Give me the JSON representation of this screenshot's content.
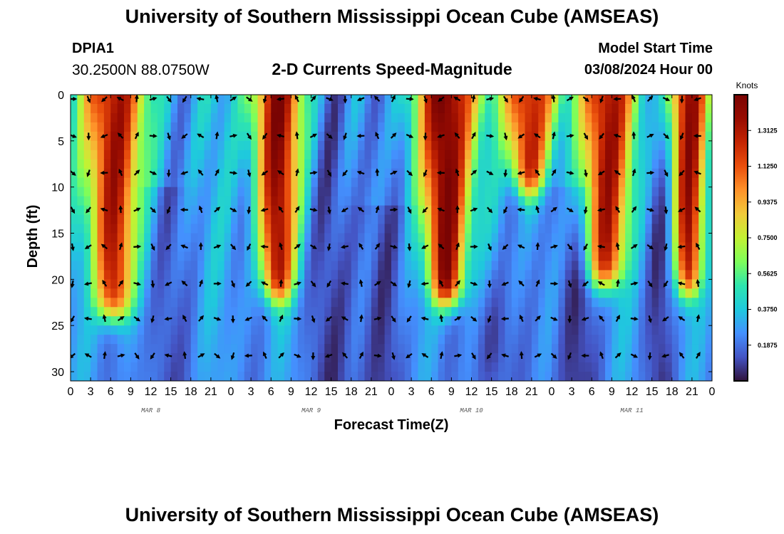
{
  "title": "University of Southern Mississippi Ocean Cube (AMSEAS)",
  "station": {
    "id": "DPIA1",
    "coords": "30.2500N  88.0750W"
  },
  "plot_title": "2-D Currents Speed-Magnitude",
  "model_start": {
    "label": "Model Start Time",
    "value": "03/08/2024 Hour 00"
  },
  "colors": {
    "colormap": [
      "#30123b",
      "#4454c4",
      "#4490fe",
      "#1fc9dd",
      "#2ee5ae",
      "#7efe5a",
      "#c3f133",
      "#f1ca3a",
      "#fe922a",
      "#ea4f0d",
      "#c42503",
      "#980c01",
      "#7a0403"
    ]
  },
  "chart_data": {
    "type": "heatmap",
    "title": "2-D Currents Speed-Magnitude",
    "xlabel": "Forecast Time(Z)",
    "ylabel": "Depth (ft)",
    "x_hours": [
      0,
      96
    ],
    "x_ticks": [
      "0",
      "3",
      "6",
      "9",
      "12",
      "15",
      "18",
      "21",
      "0",
      "3",
      "6",
      "9",
      "12",
      "15",
      "18",
      "21",
      "0",
      "3",
      "6",
      "9",
      "12",
      "15",
      "18",
      "21",
      "0",
      "3",
      "6",
      "9",
      "12",
      "15",
      "18",
      "21",
      "0"
    ],
    "day_labels": [
      {
        "label": "MAR 8",
        "hour": 12
      },
      {
        "label": "MAR 9",
        "hour": 36
      },
      {
        "label": "MAR 10",
        "hour": 60
      },
      {
        "label": "MAR 11",
        "hour": 84
      }
    ],
    "y_range": [
      0,
      31
    ],
    "y_ticks": [
      "0",
      "5",
      "10",
      "15",
      "20",
      "25",
      "30"
    ],
    "colorbar": {
      "unit": "Knots",
      "range": [
        0,
        1.5
      ],
      "labels": [
        "1.3125",
        "1.1250",
        "0.9375",
        "0.7500",
        "0.5625",
        "0.3750",
        "0.1875"
      ]
    },
    "arrow_depths_ft": [
      0,
      4,
      8,
      12,
      16,
      20,
      23.8,
      27.8
    ],
    "strong_currents": [
      {
        "hour": 6.5,
        "width_h": 3.2,
        "max_depth_ft": 24,
        "peak_kn": 1.28
      },
      {
        "hour": 31.0,
        "width_h": 2.8,
        "max_depth_ft": 22,
        "peak_kn": 1.26
      },
      {
        "hour": 56.3,
        "width_h": 3.0,
        "max_depth_ft": 22.5,
        "peak_kn": 1.45
      },
      {
        "hour": 68.5,
        "width_h": 2.8,
        "max_depth_ft": 10.5,
        "peak_kn": 1.22
      },
      {
        "hour": 80.0,
        "width_h": 3.2,
        "max_depth_ft": 20.5,
        "peak_kn": 1.25
      },
      {
        "hour": 92.5,
        "width_h": 2.2,
        "max_depth_ft": 21.5,
        "peak_kn": 1.22
      }
    ]
  }
}
